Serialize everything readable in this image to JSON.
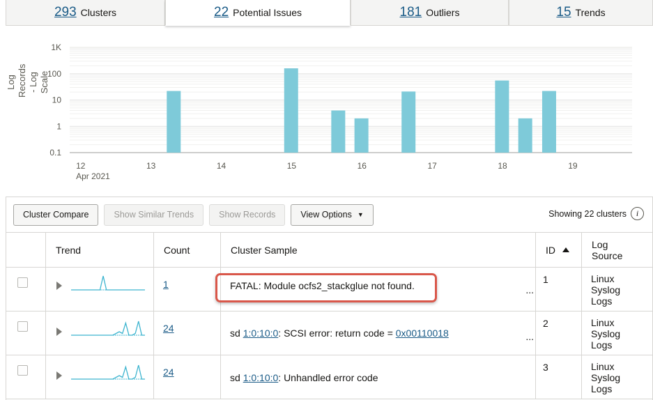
{
  "tabs": [
    {
      "count": "293",
      "label": "Clusters",
      "active": false
    },
    {
      "count": "22",
      "label": "Potential Issues",
      "active": true
    },
    {
      "count": "181",
      "label": "Outliers",
      "active": false
    },
    {
      "count": "15",
      "label": "Trends",
      "active": false
    }
  ],
  "chart_data": {
    "type": "bar",
    "ylabel": "Log Records - Log Scale",
    "yscale": "log",
    "ylim": [
      0.1,
      1000
    ],
    "yticks": [
      "0.1",
      "1",
      "10",
      "100",
      "1K"
    ],
    "xticks": [
      "12",
      "13",
      "14",
      "15",
      "16",
      "17",
      "18",
      "19"
    ],
    "xtick_sublabel": "Apr 2021",
    "grid": true,
    "bar_color": "#7ecad9",
    "bars": [
      {
        "x": 13.33,
        "y": 22
      },
      {
        "x": 15.0,
        "y": 160
      },
      {
        "x": 15.67,
        "y": 4
      },
      {
        "x": 16.0,
        "y": 2
      },
      {
        "x": 16.67,
        "y": 21
      },
      {
        "x": 18.0,
        "y": 55
      },
      {
        "x": 18.33,
        "y": 2
      },
      {
        "x": 18.67,
        "y": 22
      }
    ]
  },
  "toolbar": {
    "cluster_compare": "Cluster Compare",
    "show_similar": "Show Similar Trends",
    "show_records": "Show Records",
    "view_options": "View Options",
    "showing": "Showing 22 clusters",
    "info_icon": "i"
  },
  "table": {
    "headers": {
      "trend": "Trend",
      "count": "Count",
      "sample": "Cluster Sample",
      "id": "ID",
      "source": "Log Source"
    },
    "rows": [
      {
        "count": "1",
        "sample_pre": "FATAL: Module ocfs2_stackglue not found.",
        "link1": "",
        "sample_mid": "",
        "link2": "",
        "ellipsis": "...",
        "id": "1",
        "source": "Linux Syslog Logs",
        "highlight": true,
        "spark": [
          0,
          0,
          0,
          0,
          0,
          0,
          0,
          0,
          0,
          0,
          10,
          0,
          0,
          0,
          0,
          0,
          0,
          0,
          0,
          0,
          0,
          0,
          0,
          0
        ]
      },
      {
        "count": "24",
        "sample_pre": "sd ",
        "link1": "1:0:10:0",
        "sample_mid": ": SCSI error: return code = ",
        "link2": "0x00110018",
        "ellipsis": "...",
        "id": "2",
        "source": "Linux Syslog Logs",
        "highlight": false,
        "spark": [
          0,
          0,
          0,
          0,
          0,
          0,
          0,
          0,
          0,
          0,
          0,
          0,
          0,
          0,
          1,
          2,
          1,
          7,
          0,
          0,
          1,
          8,
          0,
          0
        ]
      },
      {
        "count": "24",
        "sample_pre": "sd ",
        "link1": "1:0:10:0",
        "sample_mid": ": Unhandled error code",
        "link2": "",
        "ellipsis": "",
        "id": "3",
        "source": "Linux Syslog Logs",
        "highlight": false,
        "spark": [
          0,
          0,
          0,
          0,
          0,
          0,
          0,
          0,
          0,
          0,
          0,
          0,
          0,
          0,
          1,
          2,
          1,
          7,
          0,
          0,
          1,
          8,
          0,
          0
        ]
      }
    ]
  }
}
